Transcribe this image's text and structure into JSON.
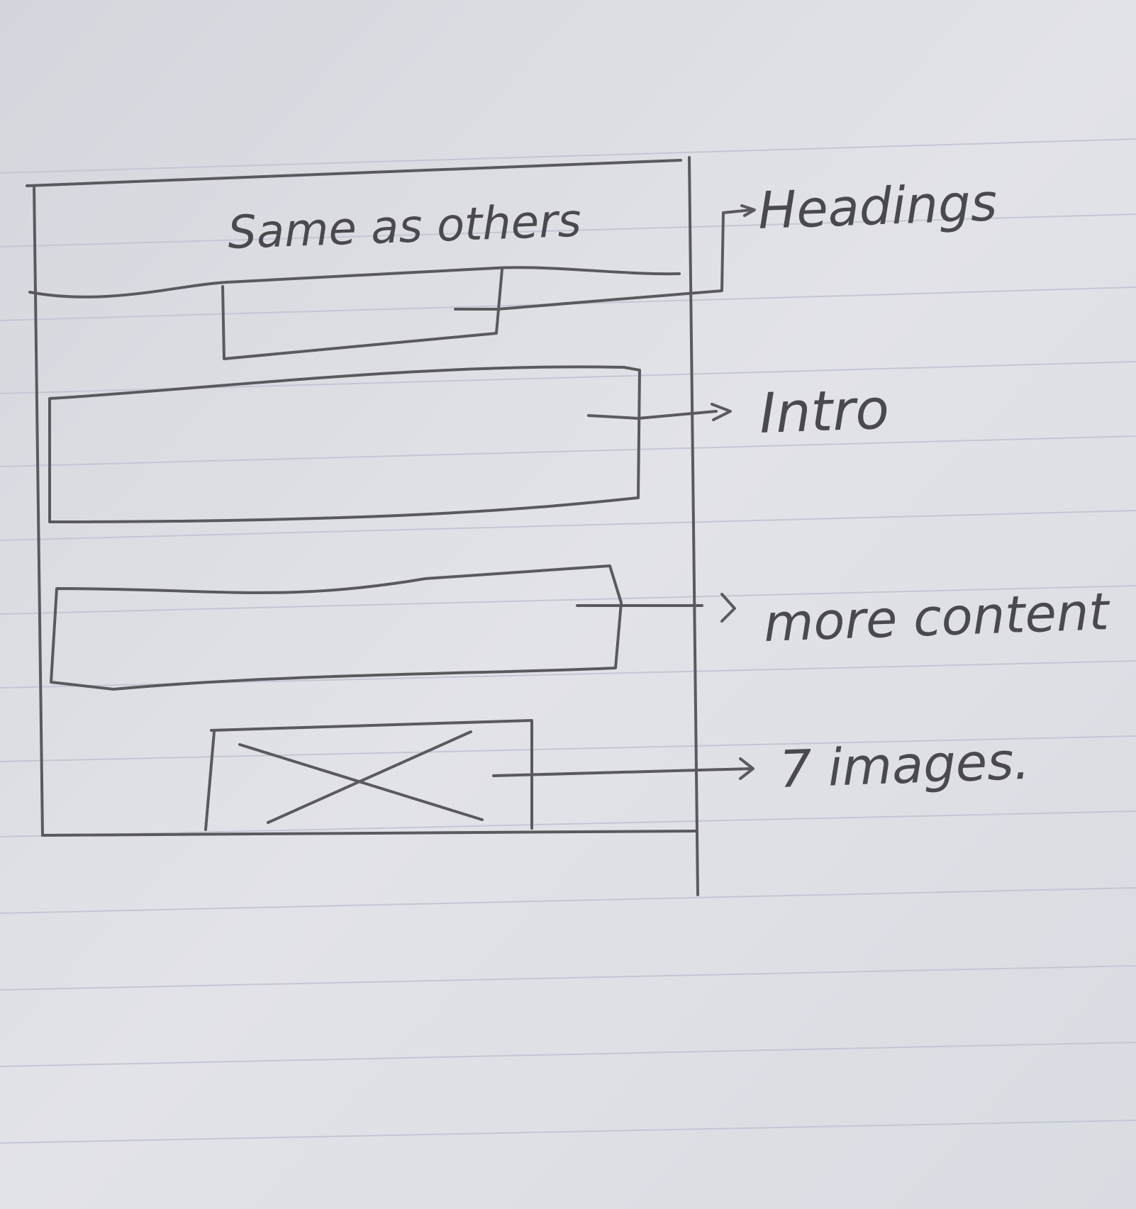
{
  "sketch": {
    "header_note": "Same as others",
    "annotations": {
      "heading": "Headings",
      "intro": "Intro",
      "more_content": "more content",
      "images": "7 images."
    }
  },
  "colors": {
    "paper": "#dfe0e6",
    "ruled_line": "#c3c7d4",
    "pencil": "#5a5a5e"
  }
}
